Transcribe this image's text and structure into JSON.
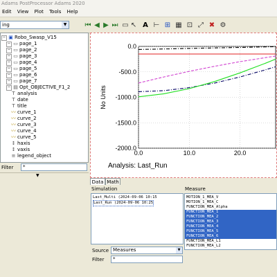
{
  "window": {
    "title": "Adams PostProcessor Adams 2020"
  },
  "menu": [
    "Edit",
    "View",
    "Plot",
    "Tools",
    "Help"
  ],
  "toolbar": {
    "mode_value": "ing",
    "icons": [
      "first-page-icon",
      "previous-page-icon",
      "next-page-icon",
      "last-page-icon",
      "new-page-icon",
      "undo-icon",
      "redo-icon",
      "play-icon",
      "select-cursor-icon",
      "text-annotation-icon",
      "axis-icon",
      "grid-toggle-icon",
      "layout-icon",
      "zoom-box-icon",
      "fit-icon",
      "delete-icon"
    ]
  },
  "tree": {
    "items": [
      {
        "label": "Robo_Swasp_V15",
        "level": 0,
        "icon": "folder-icon"
      },
      {
        "label": "page_1",
        "level": 1,
        "icon": "page-icon"
      },
      {
        "label": "page_2",
        "level": 1,
        "icon": "page-icon"
      },
      {
        "label": "page_3",
        "level": 1,
        "icon": "page-icon"
      },
      {
        "label": "page_4",
        "level": 1,
        "icon": "page-icon"
      },
      {
        "label": "page_5",
        "level": 1,
        "icon": "page-icon"
      },
      {
        "label": "page_6",
        "level": 1,
        "icon": "page-icon"
      },
      {
        "label": "page_7",
        "level": 1,
        "icon": "page-icon"
      },
      {
        "label": "Opt_OBJECTIVE_F1_2",
        "level": 1,
        "icon": "plot-icon"
      },
      {
        "label": "analysis",
        "level": 2,
        "icon": "text-icon"
      },
      {
        "label": "date",
        "level": 2,
        "icon": "text-icon"
      },
      {
        "label": "title",
        "level": 2,
        "icon": "text-icon"
      },
      {
        "label": "curve_1",
        "level": 2,
        "icon": "curve-icon"
      },
      {
        "label": "curve_2",
        "level": 2,
        "icon": "curve-icon"
      },
      {
        "label": "curve_3",
        "level": 2,
        "icon": "curve-icon"
      },
      {
        "label": "curve_4",
        "level": 2,
        "icon": "curve-icon"
      },
      {
        "label": "curve_5",
        "level": 2,
        "icon": "curve-icon"
      },
      {
        "label": "haxis",
        "level": 2,
        "icon": "axis-icon"
      },
      {
        "label": "vaxis",
        "level": 2,
        "icon": "axis-icon"
      },
      {
        "label": "legend_object",
        "level": 2,
        "icon": "legend-icon"
      }
    ]
  },
  "left_filter": {
    "label": "Filter",
    "value": "*"
  },
  "chart_data": {
    "type": "line",
    "ylabel": "No Units",
    "caption": "Analysis:  Last_Run",
    "yticks": [
      "0.0",
      "-500.0",
      "-1000.0",
      "-1500.0",
      "-2000.0"
    ],
    "xticks": [
      "0.0",
      "10.0",
      "20.0"
    ],
    "xlim": [
      0,
      27
    ],
    "ylim": [
      -2000,
      0
    ],
    "series": [
      {
        "color": "#e02020",
        "dash": "solid",
        "x": [
          0,
          5,
          10,
          15,
          20,
          25,
          27
        ],
        "y": [
          -150,
          -150,
          -150,
          -150,
          -150,
          -150,
          -150
        ]
      },
      {
        "color": "#000000",
        "dash": "dashdot",
        "x": [
          0,
          5,
          10,
          15,
          20,
          25,
          27
        ],
        "y": [
          -60,
          -50,
          -40,
          -30,
          -20,
          -10,
          -5
        ]
      },
      {
        "color": "#d040d0",
        "dash": "dash",
        "x": [
          0,
          5,
          10,
          15,
          20,
          25,
          27
        ],
        "y": [
          -720,
          -600,
          -490,
          -390,
          -300,
          -220,
          -190
        ]
      },
      {
        "color": "#000060",
        "dash": "dashdot",
        "x": [
          0,
          5,
          10,
          15,
          20,
          25,
          27
        ],
        "y": [
          -890,
          -870,
          -810,
          -720,
          -600,
          -460,
          -400
        ]
      },
      {
        "color": "#20e020",
        "dash": "solid",
        "x": [
          0,
          5,
          10,
          15,
          20,
          25,
          27
        ],
        "y": [
          -990,
          -930,
          -830,
          -690,
          -520,
          -330,
          -250
        ]
      }
    ]
  },
  "tabs": [
    "Data",
    "Math"
  ],
  "simulation": {
    "label": "Simulation",
    "rows": [
      {
        "name": "Last_Multi",
        "date": "(2024-09-06 10:15"
      },
      {
        "name": "Last_Run",
        "date": "(2024-09-06 10:25"
      }
    ]
  },
  "measure": {
    "label": "Measure",
    "rows": [
      {
        "label": "MOTION_1_MEA_V",
        "selected": false
      },
      {
        "label": "MOTION_1_MEA_C",
        "selected": false
      },
      {
        "label": "FUNCTION_MEA_Alpha",
        "selected": false
      },
      {
        "label": "FUNCTION_MEA_1",
        "selected": true
      },
      {
        "label": "FUNCTION_MEA_2",
        "selected": true
      },
      {
        "label": "FUNCTION_MEA_3",
        "selected": true
      },
      {
        "label": "FUNCTION_MEA_4",
        "selected": true
      },
      {
        "label": "FUNCTION_MEA_5",
        "selected": true
      },
      {
        "label": "FUNCTION_MEA_6",
        "selected": true
      },
      {
        "label": "FUNCTION_MEA_L1",
        "selected": false
      },
      {
        "label": "FUNCTION_MEA_L2",
        "selected": false
      }
    ]
  },
  "source": {
    "label": "Source",
    "value": "Measures"
  },
  "bottom_filter": {
    "label": "Filter",
    "value": "*"
  }
}
